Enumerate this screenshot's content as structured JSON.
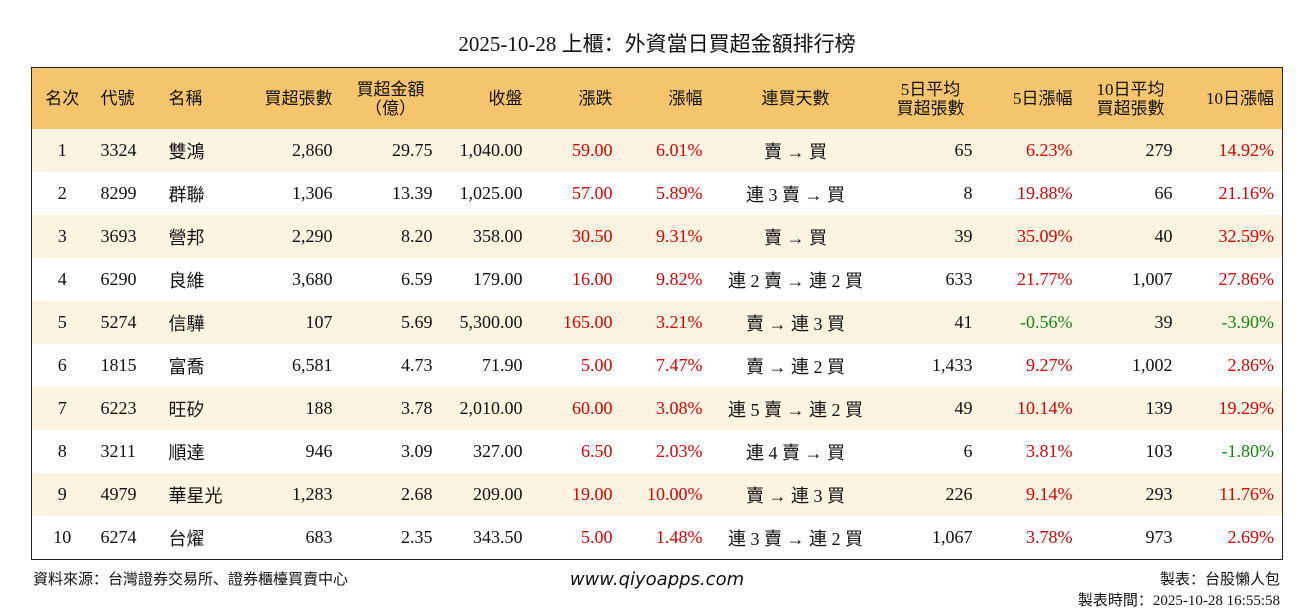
{
  "header": {
    "title": "2025-10-28 上櫃：外資當日買超金額排行榜"
  },
  "table": {
    "columns": [
      [
        "名次"
      ],
      [
        "代號"
      ],
      [
        "名稱"
      ],
      [
        "買超張數"
      ],
      [
        "買超金額",
        "（億）"
      ],
      [
        "收盤"
      ],
      [
        "漲跌"
      ],
      [
        "漲幅"
      ],
      [
        "連買天數"
      ],
      [
        "5日平均",
        "買超張數"
      ],
      [
        "5日漲幅"
      ],
      [
        "10日平均",
        "買超張數"
      ],
      [
        "10日漲幅"
      ]
    ],
    "rows": [
      [
        "1",
        "3324",
        "雙鴻",
        "2,860",
        "29.75",
        "1,040.00",
        "59.00",
        "6.01%",
        "賣 → 買",
        "65",
        "6.23%",
        "279",
        "14.92%"
      ],
      [
        "2",
        "8299",
        "群聯",
        "1,306",
        "13.39",
        "1,025.00",
        "57.00",
        "5.89%",
        "連 3 賣 → 買",
        "8",
        "19.88%",
        "66",
        "21.16%"
      ],
      [
        "3",
        "3693",
        "營邦",
        "2,290",
        "8.20",
        "358.00",
        "30.50",
        "9.31%",
        "賣 → 買",
        "39",
        "35.09%",
        "40",
        "32.59%"
      ],
      [
        "4",
        "6290",
        "良維",
        "3,680",
        "6.59",
        "179.00",
        "16.00",
        "9.82%",
        "連 2 賣 → 連 2 買",
        "633",
        "21.77%",
        "1,007",
        "27.86%"
      ],
      [
        "5",
        "5274",
        "信驊",
        "107",
        "5.69",
        "5,300.00",
        "165.00",
        "3.21%",
        "賣 → 連 3 買",
        "41",
        "-0.56%",
        "39",
        "-3.90%"
      ],
      [
        "6",
        "1815",
        "富喬",
        "6,581",
        "4.73",
        "71.90",
        "5.00",
        "7.47%",
        "賣 → 連 2 買",
        "1,433",
        "9.27%",
        "1,002",
        "2.86%"
      ],
      [
        "7",
        "6223",
        "旺矽",
        "188",
        "3.78",
        "2,010.00",
        "60.00",
        "3.08%",
        "連 5 賣 → 連 2 買",
        "49",
        "10.14%",
        "139",
        "19.29%"
      ],
      [
        "8",
        "3211",
        "順達",
        "946",
        "3.09",
        "327.00",
        "6.50",
        "2.03%",
        "連 4 賣 → 買",
        "6",
        "3.81%",
        "103",
        "-1.80%"
      ],
      [
        "9",
        "4979",
        "華星光",
        "1,283",
        "2.68",
        "209.00",
        "19.00",
        "10.00%",
        "賣 → 連 3 買",
        "226",
        "9.14%",
        "293",
        "11.76%"
      ],
      [
        "10",
        "6274",
        "台燿",
        "683",
        "2.35",
        "343.50",
        "5.00",
        "1.48%",
        "連 3 賣 → 連 2 買",
        "1,067",
        "3.78%",
        "973",
        "2.69%"
      ]
    ]
  },
  "footer": {
    "source": "資料來源：台灣證券交易所、證券櫃檯買賣中心",
    "site": "www.qiyoapps.com",
    "maker": "製表：台股懶人包",
    "time": "製表時間：2025-10-28 16:55:58"
  }
}
